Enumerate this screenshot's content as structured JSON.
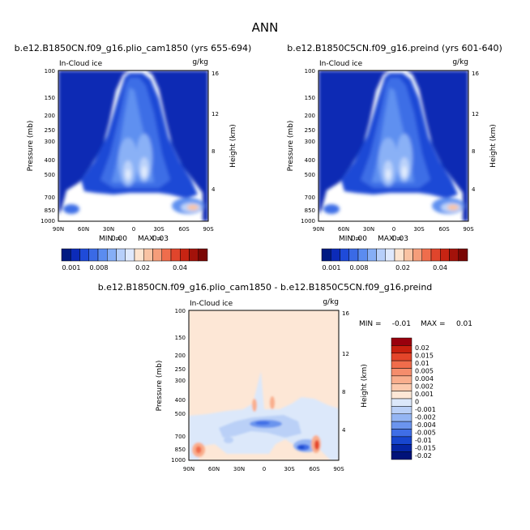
{
  "page_title": "ANN",
  "chart_data": [
    {
      "type": "contour",
      "title": "b.e12.B1850CN.f09_g16.plio_cam1850 (yrs 655-694)",
      "variable": "In-Cloud ice",
      "units": "g/kg",
      "ylabel": "Pressure (mb)",
      "y2label": "Height (km)",
      "x_ticks": [
        "90N",
        "60N",
        "30N",
        "0",
        "30S",
        "60S",
        "90S"
      ],
      "y_ticks": [
        "100",
        "150",
        "200",
        "250",
        "300",
        "400",
        "500",
        "700",
        "850",
        "1000"
      ],
      "y_values": [
        100,
        150,
        200,
        250,
        300,
        400,
        500,
        700,
        850,
        1000
      ],
      "y2_ticks": [
        "16",
        "12",
        "8",
        "4"
      ],
      "min_label": "MIN =",
      "min_value": "0.00",
      "max_label": "MAX =",
      "max_value": "0.03",
      "colorbar_labels": [
        "0.001",
        "0.008",
        "0.02",
        "0.04"
      ],
      "colors": [
        "#001a82",
        "#0c2bb8",
        "#1f4bd9",
        "#3a6ae6",
        "#5b8cf0",
        "#86aef6",
        "#b7cffa",
        "#dfe9fd",
        "#fde4cf",
        "#f9c3a3",
        "#f59d7a",
        "#ef6d4c",
        "#e0452c",
        "#c72413",
        "#a3120a",
        "#7a0603"
      ]
    },
    {
      "type": "contour",
      "title": "b.e12.B1850C5CN.f09_g16.preind (yrs 601-640)",
      "variable": "In-Cloud ice",
      "units": "g/kg",
      "ylabel": "Pressure (mb)",
      "y2label": "Height (km)",
      "x_ticks": [
        "90N",
        "60N",
        "30N",
        "0",
        "30S",
        "60S",
        "90S"
      ],
      "y_ticks": [
        "100",
        "150",
        "200",
        "250",
        "300",
        "400",
        "500",
        "700",
        "850",
        "1000"
      ],
      "y_values": [
        100,
        150,
        200,
        250,
        300,
        400,
        500,
        700,
        850,
        1000
      ],
      "y2_ticks": [
        "16",
        "12",
        "8",
        "4"
      ],
      "min_label": "MIN =",
      "min_value": "0.00",
      "max_label": "MAX =",
      "max_value": "0.03",
      "colorbar_labels": [
        "0.001",
        "0.008",
        "0.02",
        "0.04"
      ],
      "colors": [
        "#001a82",
        "#0c2bb8",
        "#1f4bd9",
        "#3a6ae6",
        "#5b8cf0",
        "#86aef6",
        "#b7cffa",
        "#dfe9fd",
        "#fde4cf",
        "#f9c3a3",
        "#f59d7a",
        "#ef6d4c",
        "#e0452c",
        "#c72413",
        "#a3120a",
        "#7a0603"
      ]
    },
    {
      "type": "contour",
      "title": "b.e12.B1850CN.f09_g16.plio_cam1850 - b.e12.B1850C5CN.f09_g16.preind",
      "variable": "In-Cloud ice",
      "units": "g/kg",
      "ylabel": "Pressure (mb)",
      "y2label": "Height (km)",
      "x_ticks": [
        "90N",
        "60N",
        "30N",
        "0",
        "30S",
        "60S",
        "90S"
      ],
      "y_ticks": [
        "100",
        "150",
        "200",
        "250",
        "300",
        "400",
        "500",
        "700",
        "850",
        "1000"
      ],
      "y_values": [
        100,
        150,
        200,
        250,
        300,
        400,
        500,
        700,
        850,
        1000
      ],
      "y2_ticks": [
        "16",
        "12",
        "8",
        "4"
      ],
      "min_label": "MIN =",
      "min_value": "-0.01",
      "max_label": "MAX =",
      "max_value": "0.01",
      "colorbar_labels": [
        "0.02",
        "0.015",
        "0.01",
        "0.005",
        "0.004",
        "0.002",
        "0.001",
        "0",
        "-0.001",
        "-0.002",
        "-0.004",
        "-0.005",
        "-0.01",
        "-0.015",
        "-0.02"
      ],
      "colors": [
        "#99000d",
        "#c8200f",
        "#e4452a",
        "#f06c4b",
        "#f58d6c",
        "#f9ae8d",
        "#fcc9ad",
        "#fde7d6",
        "#dce8fa",
        "#bad0f7",
        "#94b5f3",
        "#6b94ee",
        "#3f6ee6",
        "#1746cf",
        "#0525a5",
        "#011279"
      ]
    }
  ]
}
